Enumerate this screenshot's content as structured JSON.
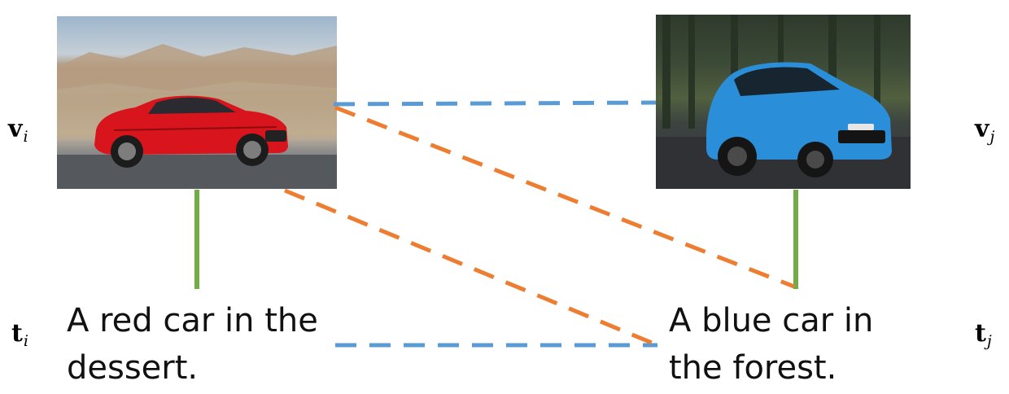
{
  "symbols": {
    "v_i": {
      "base": "v",
      "sub": "i"
    },
    "v_j": {
      "base": "v",
      "sub": "j"
    },
    "t_i": {
      "base": "t",
      "sub": "i"
    },
    "t_j": {
      "base": "t",
      "sub": "j"
    }
  },
  "captions": {
    "red": {
      "line1": "A red car in the",
      "line2": "dessert."
    },
    "blue": {
      "line1": "A blue car in",
      "line2": "the forest."
    }
  },
  "colors": {
    "positive_pair": "#70ad47",
    "same_modality": "#5b9bd5",
    "cross_modality": "#ed7d31"
  }
}
